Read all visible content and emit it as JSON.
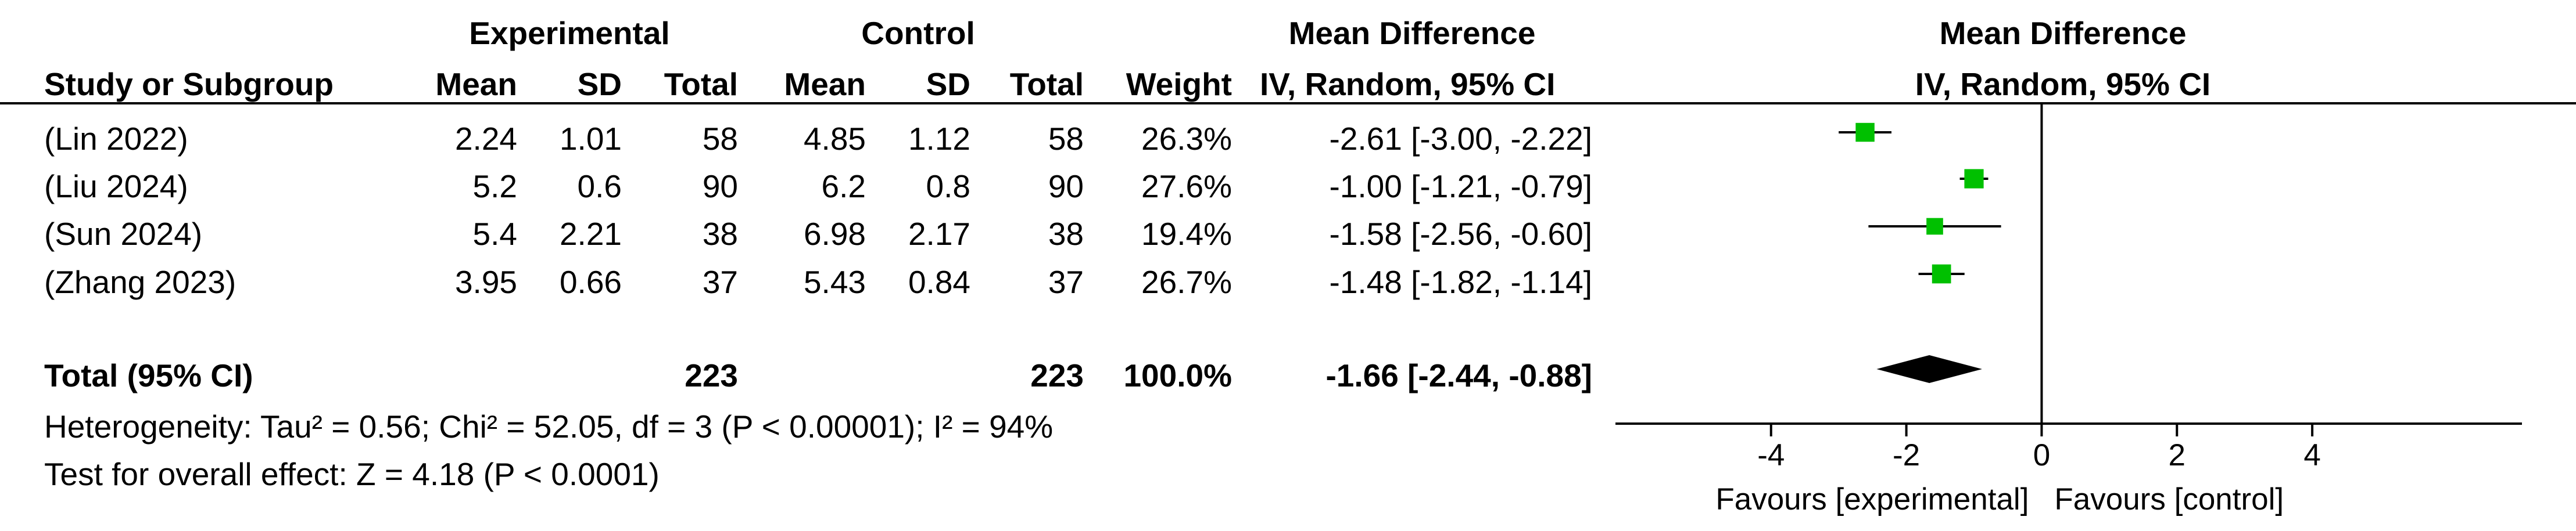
{
  "header": {
    "group1": "Experimental",
    "group2": "Control",
    "effect_col": "Mean Difference",
    "plot_col": "Mean Difference",
    "study_label": "Study or Subgroup",
    "mean": "Mean",
    "sd": "SD",
    "total": "Total",
    "weight": "Weight",
    "method": "IV, Random, 95% CI",
    "plot_method": "IV, Random, 95% CI"
  },
  "studies": [
    {
      "name": "(Lin 2022)",
      "e_mean": "2.24",
      "e_sd": "1.01",
      "e_total": "58",
      "c_mean": "4.85",
      "c_sd": "1.12",
      "c_total": "58",
      "weight": "26.3%",
      "ci": "-2.61 [-3.00, -2.22]"
    },
    {
      "name": "(Liu 2024)",
      "e_mean": "5.2",
      "e_sd": "0.6",
      "e_total": "90",
      "c_mean": "6.2",
      "c_sd": "0.8",
      "c_total": "90",
      "weight": "27.6%",
      "ci": "-1.00 [-1.21, -0.79]"
    },
    {
      "name": "(Sun 2024)",
      "e_mean": "5.4",
      "e_sd": "2.21",
      "e_total": "38",
      "c_mean": "6.98",
      "c_sd": "2.17",
      "c_total": "38",
      "weight": "19.4%",
      "ci": "-1.58 [-2.56, -0.60]"
    },
    {
      "name": "(Zhang 2023)",
      "e_mean": "3.95",
      "e_sd": "0.66",
      "e_total": "37",
      "c_mean": "5.43",
      "c_sd": "0.84",
      "c_total": "37",
      "weight": "26.7%",
      "ci": "-1.48 [-1.82, -1.14]"
    }
  ],
  "total": {
    "label": "Total (95% CI)",
    "e_total": "223",
    "c_total": "223",
    "weight": "100.0%",
    "ci": "-1.66 [-2.44, -0.88]"
  },
  "heterogeneity": "Heterogeneity: Tau² = 0.56; Chi² = 52.05, df = 3 (P < 0.00001); I² = 94%",
  "overall_effect": "Test for overall effect: Z = 4.18 (P < 0.0001)",
  "axis": {
    "favours_left": "Favours [experimental]",
    "favours_right": "Favours [control]"
  },
  "colors": {
    "marker": "#00c000",
    "diamond": "#000000"
  },
  "chart_data": {
    "type": "scatter",
    "xlim": [
      -6.3,
      7.1
    ],
    "ticks": [
      -4,
      -2,
      0,
      2,
      4
    ],
    "studies": [
      {
        "name": "(Lin 2022)",
        "md": -2.61,
        "lower": -3.0,
        "upper": -2.22,
        "weight": 26.3
      },
      {
        "name": "(Liu 2024)",
        "md": -1.0,
        "lower": -1.21,
        "upper": -0.79,
        "weight": 27.6
      },
      {
        "name": "(Sun 2024)",
        "md": -1.58,
        "lower": -2.56,
        "upper": -0.6,
        "weight": 19.4
      },
      {
        "name": "(Zhang 2023)",
        "md": -1.48,
        "lower": -1.82,
        "upper": -1.14,
        "weight": 26.7
      }
    ],
    "pooled": {
      "md": -1.66,
      "lower": -2.44,
      "upper": -0.88
    },
    "xlabel_left": "Favours [experimental]",
    "xlabel_right": "Favours [control]"
  }
}
